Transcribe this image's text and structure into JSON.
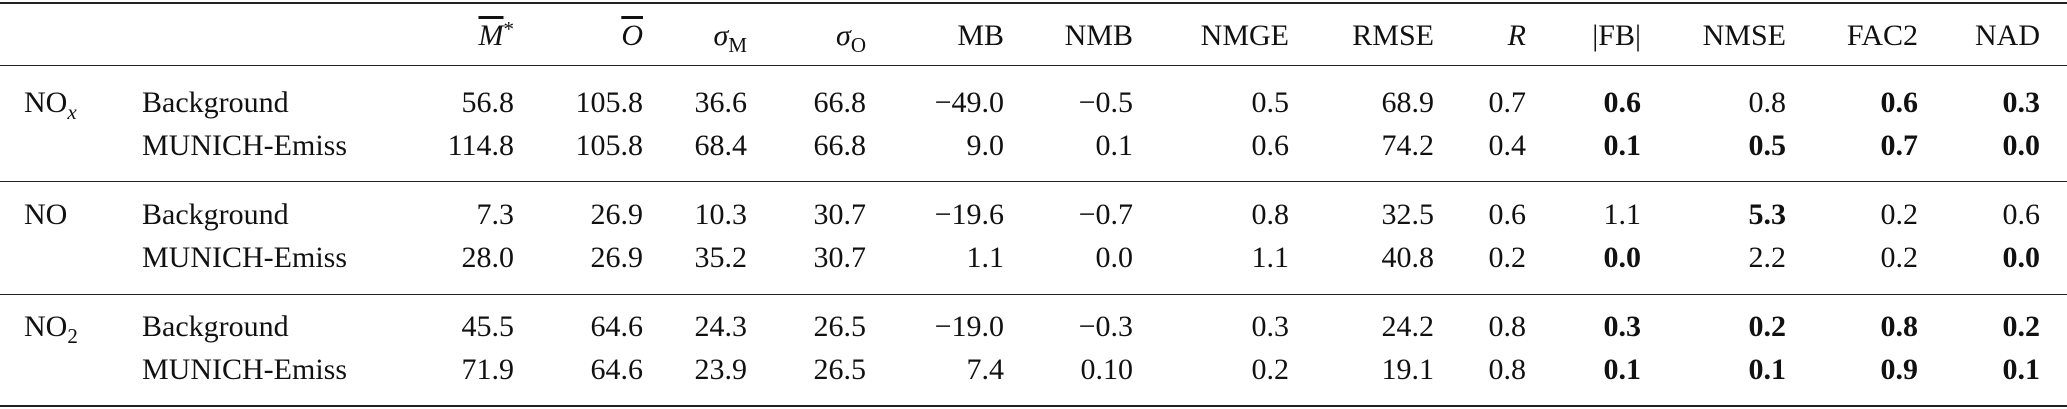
{
  "table": {
    "columns": [
      {
        "text": "M",
        "sup": "*",
        "italic": true,
        "overline": true
      },
      {
        "text": "O",
        "italic": true,
        "overline": true
      },
      {
        "text": "σ",
        "sub": "M",
        "italic": true
      },
      {
        "text": "σ",
        "sub": "O",
        "italic": true
      },
      {
        "text": "MB"
      },
      {
        "text": "NMB"
      },
      {
        "text": "NMGE"
      },
      {
        "text": "RMSE"
      },
      {
        "text": "R",
        "italic": true
      },
      {
        "text": "|FB|"
      },
      {
        "text": "NMSE"
      },
      {
        "text": "FAC2"
      },
      {
        "text": "NAD"
      }
    ],
    "groups": [
      {
        "species": {
          "text": "NO",
          "sub": "x",
          "italic_sub": true
        },
        "rows": [
          {
            "model": "Background",
            "cells": [
              "56.8",
              "105.8",
              "36.6",
              "66.8",
              "−49.0",
              "−0.5",
              "0.5",
              "68.9",
              "0.7",
              "0.6",
              "0.8",
              "0.6",
              "0.3"
            ],
            "bold": [
              9,
              11,
              12
            ]
          },
          {
            "model": "MUNICH-Emiss",
            "cells": [
              "114.8",
              "105.8",
              "68.4",
              "66.8",
              "9.0",
              "0.1",
              "0.6",
              "74.2",
              "0.4",
              "0.1",
              "0.5",
              "0.7",
              "0.0"
            ],
            "bold": [
              9,
              10,
              11,
              12
            ]
          }
        ]
      },
      {
        "species": {
          "text": "NO"
        },
        "rows": [
          {
            "model": "Background",
            "cells": [
              "7.3",
              "26.9",
              "10.3",
              "30.7",
              "−19.6",
              "−0.7",
              "0.8",
              "32.5",
              "0.6",
              "1.1",
              "5.3",
              "0.2",
              "0.6"
            ],
            "bold": [
              10
            ]
          },
          {
            "model": "MUNICH-Emiss",
            "cells": [
              "28.0",
              "26.9",
              "35.2",
              "30.7",
              "1.1",
              "0.0",
              "1.1",
              "40.8",
              "0.2",
              "0.0",
              "2.2",
              "0.2",
              "0.0"
            ],
            "bold": [
              9,
              12
            ]
          }
        ]
      },
      {
        "species": {
          "text": "NO",
          "sub": "2"
        },
        "rows": [
          {
            "model": "Background",
            "cells": [
              "45.5",
              "64.6",
              "24.3",
              "26.5",
              "−19.0",
              "−0.3",
              "0.3",
              "24.2",
              "0.8",
              "0.3",
              "0.2",
              "0.8",
              "0.2"
            ],
            "bold": [
              9,
              10,
              11,
              12
            ]
          },
          {
            "model": "MUNICH-Emiss",
            "cells": [
              "71.9",
              "64.6",
              "23.9",
              "26.5",
              "7.4",
              "0.10",
              "0.2",
              "19.1",
              "0.8",
              "0.1",
              "0.1",
              "0.9",
              "0.1"
            ],
            "bold": [
              9,
              10,
              11,
              12
            ]
          }
        ]
      }
    ]
  }
}
